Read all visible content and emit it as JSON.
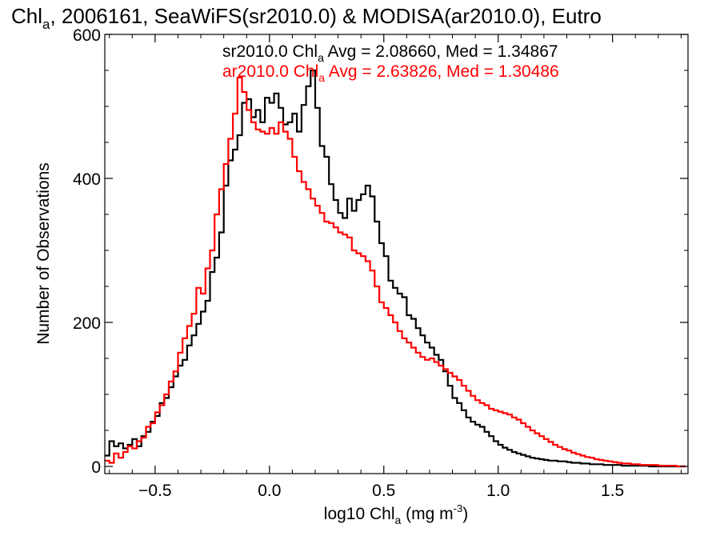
{
  "chart_data": {
    "type": "histogram",
    "title": {
      "prefix": "Chl",
      "sub": "a",
      "rest": ", 2006161, SeaWiFS(sr2010.0) & MODISA(ar2010.0), Eutro"
    },
    "xlabel": {
      "prefix": "log10 Chl",
      "sub": "a",
      "mid": " (mg m",
      "sup": "-3",
      "end": ")"
    },
    "ylabel": "Number of Observations",
    "xlim": [
      -0.72,
      1.83
    ],
    "ylim": [
      -10,
      600
    ],
    "x_ticks": [
      -0.5,
      0.0,
      0.5,
      1.0,
      1.5
    ],
    "x_tick_labels": [
      "−0.5",
      "0.0",
      "0.5",
      "1.0",
      "1.5"
    ],
    "y_ticks": [
      0,
      200,
      400,
      600
    ],
    "y_tick_labels": [
      "0",
      "200",
      "400",
      "600"
    ],
    "grid": false,
    "legend": [
      {
        "prefix": "sr2010.0 Chl",
        "sub": "a",
        "rest": " Avg = 2.08660, Med = 1.34867",
        "color": "#000000"
      },
      {
        "prefix": "ar2010.0 Chl",
        "sub": "a",
        "rest": " Avg = 2.63826, Med = 1.30486",
        "color": "#ff0000"
      }
    ],
    "series": [
      {
        "name": "sr2010.0",
        "color": "#000000",
        "points": [
          [
            -0.71,
            15
          ],
          [
            -0.69,
            35
          ],
          [
            -0.67,
            28
          ],
          [
            -0.65,
            32
          ],
          [
            -0.63,
            25
          ],
          [
            -0.61,
            30
          ],
          [
            -0.59,
            38
          ],
          [
            -0.57,
            28
          ],
          [
            -0.55,
            42
          ],
          [
            -0.53,
            48
          ],
          [
            -0.51,
            62
          ],
          [
            -0.49,
            70
          ],
          [
            -0.47,
            88
          ],
          [
            -0.45,
            95
          ],
          [
            -0.43,
            110
          ],
          [
            -0.41,
            125
          ],
          [
            -0.39,
            140
          ],
          [
            -0.37,
            148
          ],
          [
            -0.35,
            168
          ],
          [
            -0.33,
            182
          ],
          [
            -0.31,
            198
          ],
          [
            -0.29,
            215
          ],
          [
            -0.27,
            230
          ],
          [
            -0.25,
            270
          ],
          [
            -0.23,
            290
          ],
          [
            -0.21,
            325
          ],
          [
            -0.19,
            390
          ],
          [
            -0.17,
            425
          ],
          [
            -0.15,
            440
          ],
          [
            -0.13,
            460
          ],
          [
            -0.11,
            505
          ],
          [
            -0.09,
            510
          ],
          [
            -0.07,
            485
          ],
          [
            -0.05,
            495
          ],
          [
            -0.03,
            478
          ],
          [
            -0.01,
            512
          ],
          [
            0.01,
            505
          ],
          [
            0.03,
            518
          ],
          [
            0.05,
            498
          ],
          [
            0.07,
            475
          ],
          [
            0.09,
            478
          ],
          [
            0.11,
            490
          ],
          [
            0.13,
            465
          ],
          [
            0.15,
            502
          ],
          [
            0.17,
            528
          ],
          [
            0.19,
            550
          ],
          [
            0.21,
            498
          ],
          [
            0.23,
            445
          ],
          [
            0.25,
            430
          ],
          [
            0.27,
            392
          ],
          [
            0.29,
            370
          ],
          [
            0.31,
            352
          ],
          [
            0.33,
            345
          ],
          [
            0.35,
            372
          ],
          [
            0.37,
            355
          ],
          [
            0.39,
            370
          ],
          [
            0.41,
            378
          ],
          [
            0.43,
            390
          ],
          [
            0.45,
            375
          ],
          [
            0.47,
            340
          ],
          [
            0.49,
            310
          ],
          [
            0.51,
            292
          ],
          [
            0.53,
            258
          ],
          [
            0.55,
            248
          ],
          [
            0.57,
            240
          ],
          [
            0.59,
            235
          ],
          [
            0.61,
            210
          ],
          [
            0.63,
            205
          ],
          [
            0.65,
            192
          ],
          [
            0.67,
            182
          ],
          [
            0.69,
            172
          ],
          [
            0.71,
            165
          ],
          [
            0.73,
            155
          ],
          [
            0.75,
            148
          ],
          [
            0.77,
            132
          ],
          [
            0.79,
            112
          ],
          [
            0.81,
            95
          ],
          [
            0.83,
            88
          ],
          [
            0.85,
            78
          ],
          [
            0.87,
            68
          ],
          [
            0.89,
            62
          ],
          [
            0.91,
            58
          ],
          [
            0.93,
            55
          ],
          [
            0.95,
            48
          ],
          [
            0.97,
            42
          ],
          [
            0.99,
            35
          ],
          [
            1.01,
            30
          ],
          [
            1.03,
            26
          ],
          [
            1.05,
            23
          ],
          [
            1.07,
            20
          ],
          [
            1.09,
            18
          ],
          [
            1.11,
            16
          ],
          [
            1.13,
            14
          ],
          [
            1.15,
            12
          ],
          [
            1.17,
            11
          ],
          [
            1.19,
            10
          ],
          [
            1.21,
            9
          ],
          [
            1.23,
            8
          ],
          [
            1.25,
            8
          ],
          [
            1.27,
            7
          ],
          [
            1.29,
            7
          ],
          [
            1.31,
            6
          ],
          [
            1.33,
            5
          ],
          [
            1.35,
            5
          ],
          [
            1.37,
            4
          ],
          [
            1.39,
            4
          ],
          [
            1.41,
            3
          ],
          [
            1.43,
            3
          ],
          [
            1.45,
            3
          ],
          [
            1.47,
            2
          ],
          [
            1.49,
            2
          ],
          [
            1.51,
            2
          ],
          [
            1.53,
            2
          ],
          [
            1.55,
            1
          ],
          [
            1.57,
            1
          ],
          [
            1.59,
            1
          ],
          [
            1.61,
            1
          ],
          [
            1.63,
            1
          ],
          [
            1.65,
            1
          ],
          [
            1.67,
            0
          ],
          [
            1.69,
            0
          ],
          [
            1.71,
            0
          ],
          [
            1.73,
            0
          ],
          [
            1.75,
            0
          ],
          [
            1.77,
            0
          ],
          [
            1.79,
            0
          ],
          [
            1.81,
            0
          ]
        ]
      },
      {
        "name": "ar2010.0",
        "color": "#ff0000",
        "points": [
          [
            -0.71,
            8
          ],
          [
            -0.69,
            5
          ],
          [
            -0.67,
            18
          ],
          [
            -0.65,
            12
          ],
          [
            -0.63,
            20
          ],
          [
            -0.61,
            28
          ],
          [
            -0.59,
            25
          ],
          [
            -0.57,
            35
          ],
          [
            -0.55,
            40
          ],
          [
            -0.53,
            55
          ],
          [
            -0.51,
            60
          ],
          [
            -0.49,
            75
          ],
          [
            -0.47,
            85
          ],
          [
            -0.45,
            100
          ],
          [
            -0.43,
            118
          ],
          [
            -0.41,
            132
          ],
          [
            -0.39,
            158
          ],
          [
            -0.37,
            178
          ],
          [
            -0.35,
            195
          ],
          [
            -0.33,
            212
          ],
          [
            -0.31,
            248
          ],
          [
            -0.29,
            240
          ],
          [
            -0.27,
            275
          ],
          [
            -0.25,
            300
          ],
          [
            -0.23,
            350
          ],
          [
            -0.21,
            385
          ],
          [
            -0.19,
            420
          ],
          [
            -0.17,
            455
          ],
          [
            -0.15,
            490
          ],
          [
            -0.13,
            540
          ],
          [
            -0.11,
            520
          ],
          [
            -0.09,
            495
          ],
          [
            -0.07,
            478
          ],
          [
            -0.05,
            468
          ],
          [
            -0.03,
            465
          ],
          [
            -0.01,
            462
          ],
          [
            0.01,
            470
          ],
          [
            0.03,
            462
          ],
          [
            0.05,
            478
          ],
          [
            0.07,
            465
          ],
          [
            0.09,
            455
          ],
          [
            0.11,
            430
          ],
          [
            0.13,
            410
          ],
          [
            0.15,
            395
          ],
          [
            0.17,
            385
          ],
          [
            0.19,
            372
          ],
          [
            0.21,
            362
          ],
          [
            0.23,
            352
          ],
          [
            0.25,
            340
          ],
          [
            0.27,
            338
          ],
          [
            0.29,
            332
          ],
          [
            0.31,
            325
          ],
          [
            0.33,
            322
          ],
          [
            0.35,
            318
          ],
          [
            0.37,
            300
          ],
          [
            0.39,
            296
          ],
          [
            0.41,
            292
          ],
          [
            0.43,
            285
          ],
          [
            0.45,
            272
          ],
          [
            0.47,
            250
          ],
          [
            0.49,
            228
          ],
          [
            0.51,
            220
          ],
          [
            0.53,
            210
          ],
          [
            0.55,
            200
          ],
          [
            0.57,
            188
          ],
          [
            0.59,
            178
          ],
          [
            0.61,
            172
          ],
          [
            0.63,
            165
          ],
          [
            0.65,
            158
          ],
          [
            0.67,
            152
          ],
          [
            0.69,
            148
          ],
          [
            0.71,
            150
          ],
          [
            0.73,
            145
          ],
          [
            0.75,
            140
          ],
          [
            0.77,
            135
          ],
          [
            0.79,
            130
          ],
          [
            0.81,
            125
          ],
          [
            0.83,
            120
          ],
          [
            0.85,
            112
          ],
          [
            0.87,
            105
          ],
          [
            0.89,
            98
          ],
          [
            0.91,
            92
          ],
          [
            0.93,
            88
          ],
          [
            0.95,
            85
          ],
          [
            0.97,
            80
          ],
          [
            0.99,
            78
          ],
          [
            1.01,
            76
          ],
          [
            1.03,
            74
          ],
          [
            1.05,
            72
          ],
          [
            1.07,
            68
          ],
          [
            1.09,
            65
          ],
          [
            1.11,
            60
          ],
          [
            1.13,
            55
          ],
          [
            1.15,
            50
          ],
          [
            1.17,
            46
          ],
          [
            1.19,
            42
          ],
          [
            1.21,
            38
          ],
          [
            1.23,
            34
          ],
          [
            1.25,
            30
          ],
          [
            1.27,
            27
          ],
          [
            1.29,
            24
          ],
          [
            1.31,
            22
          ],
          [
            1.33,
            19
          ],
          [
            1.35,
            17
          ],
          [
            1.37,
            15
          ],
          [
            1.39,
            13
          ],
          [
            1.41,
            12
          ],
          [
            1.43,
            10
          ],
          [
            1.45,
            9
          ],
          [
            1.47,
            8
          ],
          [
            1.49,
            7
          ],
          [
            1.51,
            6
          ],
          [
            1.53,
            5
          ],
          [
            1.55,
            4
          ],
          [
            1.57,
            4
          ],
          [
            1.59,
            3
          ],
          [
            1.61,
            3
          ],
          [
            1.63,
            2
          ],
          [
            1.65,
            2
          ],
          [
            1.67,
            2
          ],
          [
            1.69,
            2
          ],
          [
            1.71,
            1
          ],
          [
            1.73,
            1
          ],
          [
            1.75,
            1
          ],
          [
            1.77,
            1
          ],
          [
            1.79,
            0
          ],
          [
            1.81,
            0
          ]
        ]
      }
    ]
  }
}
